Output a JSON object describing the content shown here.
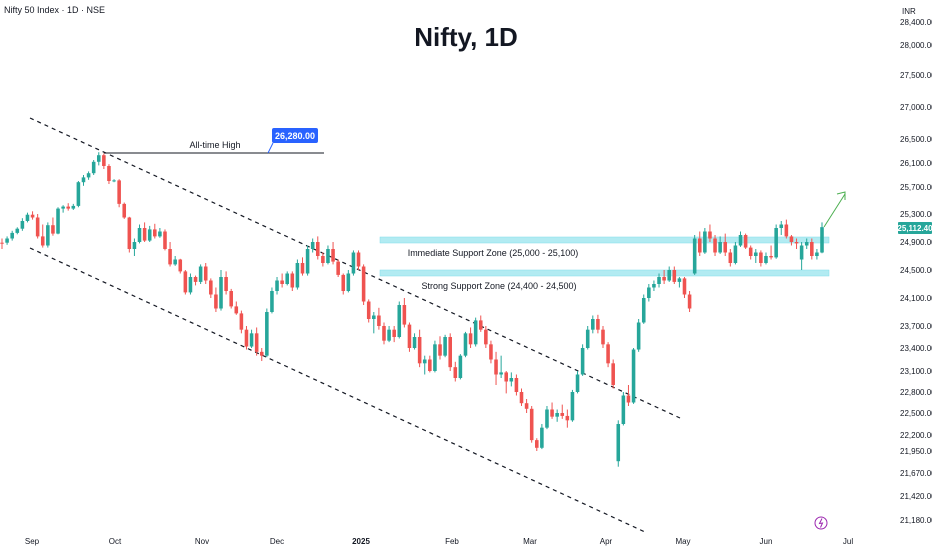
{
  "header": {
    "symbol": "Nifty 50 Index · 1D · NSE",
    "currency": "INR"
  },
  "colors": {
    "up": "#26a69a",
    "down": "#ef5350",
    "zone": "#b2ebf2",
    "zone_border": "#80deea",
    "trendline": "#131722",
    "price_label_bg": "#26a69a",
    "ath_label_bg": "#2962ff",
    "arrow": "#4caf50",
    "axis_text": "#131722"
  },
  "chart_data": {
    "type": "candlestick",
    "title": "Nifty, 1D",
    "y_axis": {
      "ticks": [
        21180,
        21420,
        21670,
        21950,
        22200,
        22500,
        22800,
        23100,
        23400,
        23700,
        24100,
        24500,
        24900,
        25300,
        25700,
        26100,
        26500,
        27000,
        27500,
        28000,
        28400
      ],
      "tick_labels": [
        "21,180.00",
        "21,420.00",
        "21,670.00",
        "21,950.00",
        "22,200.00",
        "22,500.00",
        "22,800.00",
        "23,100.00",
        "23,400.00",
        "23,700.00",
        "24,100.00",
        "24,500.00",
        "24,900.00",
        "25,300.00",
        "25,700.00",
        "26,100.00",
        "26,500.00",
        "27,000.00",
        "27,500.00",
        "28,000.00",
        "28,400.00"
      ]
    },
    "x_axis": {
      "labels": [
        "Sep",
        "Oct",
        "Nov",
        "Dec",
        "2025",
        "Feb",
        "Mar",
        "Apr",
        "May",
        "Jun",
        "Jul"
      ]
    },
    "all_time_high": {
      "label": "All-time High",
      "value": 26280,
      "value_label": "26,280.00"
    },
    "current_price": {
      "value": 25112.4,
      "label": "25,112.40"
    },
    "zones": [
      {
        "name": "Immediate Support Zone (25,000 - 25,100)",
        "low": 25000,
        "high": 25100
      },
      {
        "name": "Strong Support Zone (24,400 - 24,500)",
        "low": 24400,
        "high": 24500
      }
    ],
    "candles": [
      {
        "o": 24890,
        "h": 24950,
        "l": 24800,
        "c": 24880
      },
      {
        "o": 24890,
        "h": 24980,
        "l": 24860,
        "c": 24950
      },
      {
        "o": 24950,
        "h": 25060,
        "l": 24920,
        "c": 25030
      },
      {
        "o": 25030,
        "h": 25110,
        "l": 25010,
        "c": 25090
      },
      {
        "o": 25090,
        "h": 25240,
        "l": 25060,
        "c": 25200
      },
      {
        "o": 25200,
        "h": 25320,
        "l": 25180,
        "c": 25290
      },
      {
        "o": 25290,
        "h": 25340,
        "l": 25220,
        "c": 25250
      },
      {
        "o": 25250,
        "h": 25300,
        "l": 24950,
        "c": 24980
      },
      {
        "o": 24980,
        "h": 25150,
        "l": 24820,
        "c": 24850
      },
      {
        "o": 24850,
        "h": 25180,
        "l": 24820,
        "c": 25140
      },
      {
        "o": 25140,
        "h": 25250,
        "l": 24990,
        "c": 25020
      },
      {
        "o": 25020,
        "h": 25400,
        "l": 25010,
        "c": 25380
      },
      {
        "o": 25380,
        "h": 25430,
        "l": 25320,
        "c": 25410
      },
      {
        "o": 25410,
        "h": 25460,
        "l": 25350,
        "c": 25380
      },
      {
        "o": 25380,
        "h": 25450,
        "l": 25360,
        "c": 25420
      },
      {
        "o": 25420,
        "h": 25800,
        "l": 25400,
        "c": 25780
      },
      {
        "o": 25780,
        "h": 25900,
        "l": 25720,
        "c": 25860
      },
      {
        "o": 25860,
        "h": 25960,
        "l": 25820,
        "c": 25930
      },
      {
        "o": 25930,
        "h": 26150,
        "l": 25900,
        "c": 26120
      },
      {
        "o": 26120,
        "h": 26280,
        "l": 26060,
        "c": 26230
      },
      {
        "o": 26230,
        "h": 26260,
        "l": 26000,
        "c": 26050
      },
      {
        "o": 26050,
        "h": 26080,
        "l": 25750,
        "c": 25800
      },
      {
        "o": 25800,
        "h": 25830,
        "l": 25780,
        "c": 25810
      },
      {
        "o": 25810,
        "h": 25830,
        "l": 25400,
        "c": 25450
      },
      {
        "o": 25450,
        "h": 25470,
        "l": 25230,
        "c": 25250
      },
      {
        "o": 25250,
        "h": 25260,
        "l": 24750,
        "c": 24800
      },
      {
        "o": 24800,
        "h": 24950,
        "l": 24700,
        "c": 24900
      },
      {
        "o": 24900,
        "h": 25150,
        "l": 24880,
        "c": 25100
      },
      {
        "o": 25100,
        "h": 25180,
        "l": 24900,
        "c": 24920
      },
      {
        "o": 24920,
        "h": 25130,
        "l": 24900,
        "c": 25080
      },
      {
        "o": 25080,
        "h": 25160,
        "l": 24950,
        "c": 24980
      },
      {
        "o": 24980,
        "h": 25100,
        "l": 24960,
        "c": 25050
      },
      {
        "o": 25050,
        "h": 25080,
        "l": 24780,
        "c": 24800
      },
      {
        "o": 24800,
        "h": 24900,
        "l": 24550,
        "c": 24580
      },
      {
        "o": 24580,
        "h": 24700,
        "l": 24560,
        "c": 24650
      },
      {
        "o": 24650,
        "h": 24660,
        "l": 24450,
        "c": 24480
      },
      {
        "o": 24480,
        "h": 24500,
        "l": 24150,
        "c": 24180
      },
      {
        "o": 24180,
        "h": 24450,
        "l": 24150,
        "c": 24400
      },
      {
        "o": 24400,
        "h": 24420,
        "l": 24280,
        "c": 24330
      },
      {
        "o": 24330,
        "h": 24580,
        "l": 24300,
        "c": 24550
      },
      {
        "o": 24550,
        "h": 24600,
        "l": 24300,
        "c": 24350
      },
      {
        "o": 24350,
        "h": 24380,
        "l": 24100,
        "c": 24150
      },
      {
        "o": 24150,
        "h": 24250,
        "l": 23900,
        "c": 23950
      },
      {
        "o": 23950,
        "h": 24500,
        "l": 23920,
        "c": 24400
      },
      {
        "o": 24400,
        "h": 24480,
        "l": 24150,
        "c": 24200
      },
      {
        "o": 24200,
        "h": 24230,
        "l": 23950,
        "c": 23980
      },
      {
        "o": 23980,
        "h": 24050,
        "l": 23860,
        "c": 23880
      },
      {
        "o": 23880,
        "h": 23920,
        "l": 23600,
        "c": 23650
      },
      {
        "o": 23650,
        "h": 23700,
        "l": 23380,
        "c": 23420
      },
      {
        "o": 23420,
        "h": 23650,
        "l": 23400,
        "c": 23600
      },
      {
        "o": 23600,
        "h": 23680,
        "l": 23300,
        "c": 23350
      },
      {
        "o": 23350,
        "h": 23400,
        "l": 23230,
        "c": 23300
      },
      {
        "o": 23300,
        "h": 23950,
        "l": 23280,
        "c": 23900
      },
      {
        "o": 23900,
        "h": 24250,
        "l": 23880,
        "c": 24200
      },
      {
        "o": 24200,
        "h": 24400,
        "l": 24150,
        "c": 24350
      },
      {
        "o": 24350,
        "h": 24450,
        "l": 24250,
        "c": 24300
      },
      {
        "o": 24300,
        "h": 24480,
        "l": 24280,
        "c": 24450
      },
      {
        "o": 24450,
        "h": 24480,
        "l": 24200,
        "c": 24250
      },
      {
        "o": 24250,
        "h": 24650,
        "l": 24220,
        "c": 24600
      },
      {
        "o": 24600,
        "h": 24680,
        "l": 24420,
        "c": 24450
      },
      {
        "o": 24450,
        "h": 24850,
        "l": 24420,
        "c": 24800
      },
      {
        "o": 24800,
        "h": 24950,
        "l": 24750,
        "c": 24900
      },
      {
        "o": 24900,
        "h": 24980,
        "l": 24650,
        "c": 24700
      },
      {
        "o": 24700,
        "h": 24750,
        "l": 24550,
        "c": 24600
      },
      {
        "o": 24600,
        "h": 24850,
        "l": 24580,
        "c": 24800
      },
      {
        "o": 24800,
        "h": 24900,
        "l": 24580,
        "c": 24620
      },
      {
        "o": 24620,
        "h": 24650,
        "l": 24400,
        "c": 24430
      },
      {
        "o": 24430,
        "h": 24450,
        "l": 24150,
        "c": 24200
      },
      {
        "o": 24200,
        "h": 24500,
        "l": 24180,
        "c": 24450
      },
      {
        "o": 24450,
        "h": 24780,
        "l": 24420,
        "c": 24750
      },
      {
        "o": 24750,
        "h": 24780,
        "l": 24500,
        "c": 24550
      },
      {
        "o": 24550,
        "h": 24580,
        "l": 24000,
        "c": 24050
      },
      {
        "o": 24050,
        "h": 24080,
        "l": 23750,
        "c": 23800
      },
      {
        "o": 23800,
        "h": 23900,
        "l": 23600,
        "c": 23850
      },
      {
        "o": 23850,
        "h": 23960,
        "l": 23650,
        "c": 23700
      },
      {
        "o": 23700,
        "h": 23750,
        "l": 23450,
        "c": 23500
      },
      {
        "o": 23500,
        "h": 23700,
        "l": 23480,
        "c": 23650
      },
      {
        "o": 23650,
        "h": 23700,
        "l": 23480,
        "c": 23550
      },
      {
        "o": 23550,
        "h": 24050,
        "l": 23530,
        "c": 24000
      },
      {
        "o": 24000,
        "h": 24100,
        "l": 23680,
        "c": 23720
      },
      {
        "o": 23720,
        "h": 23750,
        "l": 23350,
        "c": 23400
      },
      {
        "o": 23400,
        "h": 23600,
        "l": 23380,
        "c": 23550
      },
      {
        "o": 23550,
        "h": 23650,
        "l": 23150,
        "c": 23200
      },
      {
        "o": 23200,
        "h": 23300,
        "l": 23050,
        "c": 23250
      },
      {
        "o": 23250,
        "h": 23300,
        "l": 23080,
        "c": 23100
      },
      {
        "o": 23100,
        "h": 23500,
        "l": 23080,
        "c": 23450
      },
      {
        "o": 23450,
        "h": 23560,
        "l": 23250,
        "c": 23300
      },
      {
        "o": 23300,
        "h": 23580,
        "l": 23280,
        "c": 23550
      },
      {
        "o": 23550,
        "h": 23600,
        "l": 23100,
        "c": 23150
      },
      {
        "o": 23150,
        "h": 23220,
        "l": 22950,
        "c": 23000
      },
      {
        "o": 23000,
        "h": 23320,
        "l": 22980,
        "c": 23300
      },
      {
        "o": 23300,
        "h": 23620,
        "l": 23280,
        "c": 23600
      },
      {
        "o": 23600,
        "h": 23680,
        "l": 23400,
        "c": 23450
      },
      {
        "o": 23450,
        "h": 23820,
        "l": 23420,
        "c": 23780
      },
      {
        "o": 23780,
        "h": 23850,
        "l": 23620,
        "c": 23650
      },
      {
        "o": 23650,
        "h": 23700,
        "l": 23400,
        "c": 23450
      },
      {
        "o": 23450,
        "h": 23500,
        "l": 23200,
        "c": 23250
      },
      {
        "o": 23250,
        "h": 23350,
        "l": 22900,
        "c": 23050
      },
      {
        "o": 23050,
        "h": 23300,
        "l": 23000,
        "c": 23080
      },
      {
        "o": 23080,
        "h": 23100,
        "l": 22780,
        "c": 22950
      },
      {
        "o": 22950,
        "h": 23080,
        "l": 22880,
        "c": 23000
      },
      {
        "o": 23000,
        "h": 23050,
        "l": 22750,
        "c": 22800
      },
      {
        "o": 22800,
        "h": 22850,
        "l": 22600,
        "c": 22640
      },
      {
        "o": 22640,
        "h": 22700,
        "l": 22500,
        "c": 22560
      },
      {
        "o": 22560,
        "h": 22600,
        "l": 22080,
        "c": 22120
      },
      {
        "o": 22120,
        "h": 22150,
        "l": 21950,
        "c": 22000
      },
      {
        "o": 22000,
        "h": 22350,
        "l": 21980,
        "c": 22300
      },
      {
        "o": 22300,
        "h": 22600,
        "l": 22280,
        "c": 22550
      },
      {
        "o": 22550,
        "h": 22650,
        "l": 22420,
        "c": 22450
      },
      {
        "o": 22450,
        "h": 22550,
        "l": 22380,
        "c": 22500
      },
      {
        "o": 22500,
        "h": 22620,
        "l": 22420,
        "c": 22460
      },
      {
        "o": 22460,
        "h": 22550,
        "l": 22300,
        "c": 22400
      },
      {
        "o": 22400,
        "h": 22830,
        "l": 22380,
        "c": 22800
      },
      {
        "o": 22800,
        "h": 23100,
        "l": 22780,
        "c": 23050
      },
      {
        "o": 23050,
        "h": 23450,
        "l": 23030,
        "c": 23400
      },
      {
        "o": 23400,
        "h": 23700,
        "l": 23380,
        "c": 23650
      },
      {
        "o": 23650,
        "h": 23850,
        "l": 23600,
        "c": 23800
      },
      {
        "o": 23800,
        "h": 23860,
        "l": 23600,
        "c": 23650
      },
      {
        "o": 23650,
        "h": 23700,
        "l": 23400,
        "c": 23450
      },
      {
        "o": 23450,
        "h": 23480,
        "l": 23150,
        "c": 23200
      },
      {
        "o": 23200,
        "h": 23250,
        "l": 22850,
        "c": 22900
      },
      {
        "o": 21820,
        "h": 22400,
        "l": 21750,
        "c": 22350
      },
      {
        "o": 22350,
        "h": 22800,
        "l": 22330,
        "c": 22750
      },
      {
        "o": 22750,
        "h": 22900,
        "l": 22600,
        "c": 22650
      },
      {
        "o": 22650,
        "h": 23400,
        "l": 22630,
        "c": 23380
      },
      {
        "o": 23380,
        "h": 23800,
        "l": 23350,
        "c": 23750
      },
      {
        "o": 23750,
        "h": 24150,
        "l": 23730,
        "c": 24100
      },
      {
        "o": 24100,
        "h": 24300,
        "l": 24050,
        "c": 24250
      },
      {
        "o": 24250,
        "h": 24350,
        "l": 24200,
        "c": 24300
      },
      {
        "o": 24300,
        "h": 24450,
        "l": 24250,
        "c": 24400
      },
      {
        "o": 24400,
        "h": 24500,
        "l": 24300,
        "c": 24350
      },
      {
        "o": 24350,
        "h": 24550,
        "l": 24330,
        "c": 24500
      },
      {
        "o": 24500,
        "h": 24550,
        "l": 24300,
        "c": 24330
      },
      {
        "o": 24330,
        "h": 24400,
        "l": 24250,
        "c": 24380
      },
      {
        "o": 24380,
        "h": 24400,
        "l": 24100,
        "c": 24150
      },
      {
        "o": 24150,
        "h": 24200,
        "l": 23900,
        "c": 23950
      },
      {
        "o": 24450,
        "h": 25000,
        "l": 24430,
        "c": 24950
      },
      {
        "o": 24950,
        "h": 25050,
        "l": 24700,
        "c": 24750
      },
      {
        "o": 24750,
        "h": 25100,
        "l": 24730,
        "c": 25050
      },
      {
        "o": 25050,
        "h": 25150,
        "l": 24900,
        "c": 24950
      },
      {
        "o": 24950,
        "h": 25000,
        "l": 24700,
        "c": 24750
      },
      {
        "o": 24750,
        "h": 24980,
        "l": 24730,
        "c": 24900
      },
      {
        "o": 24900,
        "h": 25020,
        "l": 24700,
        "c": 24750
      },
      {
        "o": 24750,
        "h": 24800,
        "l": 24550,
        "c": 24600
      },
      {
        "o": 24600,
        "h": 24900,
        "l": 24580,
        "c": 24850
      },
      {
        "o": 24850,
        "h": 25050,
        "l": 24830,
        "c": 25000
      },
      {
        "o": 25000,
        "h": 25020,
        "l": 24800,
        "c": 24820
      },
      {
        "o": 24820,
        "h": 24850,
        "l": 24650,
        "c": 24700
      },
      {
        "o": 24700,
        "h": 24800,
        "l": 24600,
        "c": 24750
      },
      {
        "o": 24750,
        "h": 24780,
        "l": 24550,
        "c": 24600
      },
      {
        "o": 24600,
        "h": 24750,
        "l": 24580,
        "c": 24700
      },
      {
        "o": 24700,
        "h": 24850,
        "l": 24650,
        "c": 24680
      },
      {
        "o": 24680,
        "h": 25150,
        "l": 24660,
        "c": 25100
      },
      {
        "o": 25100,
        "h": 25200,
        "l": 25000,
        "c": 25150
      },
      {
        "o": 25150,
        "h": 25220,
        "l": 24950,
        "c": 24980
      },
      {
        "o": 24980,
        "h": 25000,
        "l": 24850,
        "c": 24900
      },
      {
        "o": 24900,
        "h": 24950,
        "l": 24800,
        "c": 24880
      },
      {
        "o": 24650,
        "h": 24900,
        "l": 24500,
        "c": 24850
      },
      {
        "o": 24850,
        "h": 24950,
        "l": 24800,
        "c": 24900
      },
      {
        "o": 24900,
        "h": 24950,
        "l": 24650,
        "c": 24700
      },
      {
        "o": 24700,
        "h": 24800,
        "l": 24650,
        "c": 24750
      },
      {
        "o": 24750,
        "h": 25180,
        "l": 24740,
        "c": 25112
      }
    ]
  }
}
